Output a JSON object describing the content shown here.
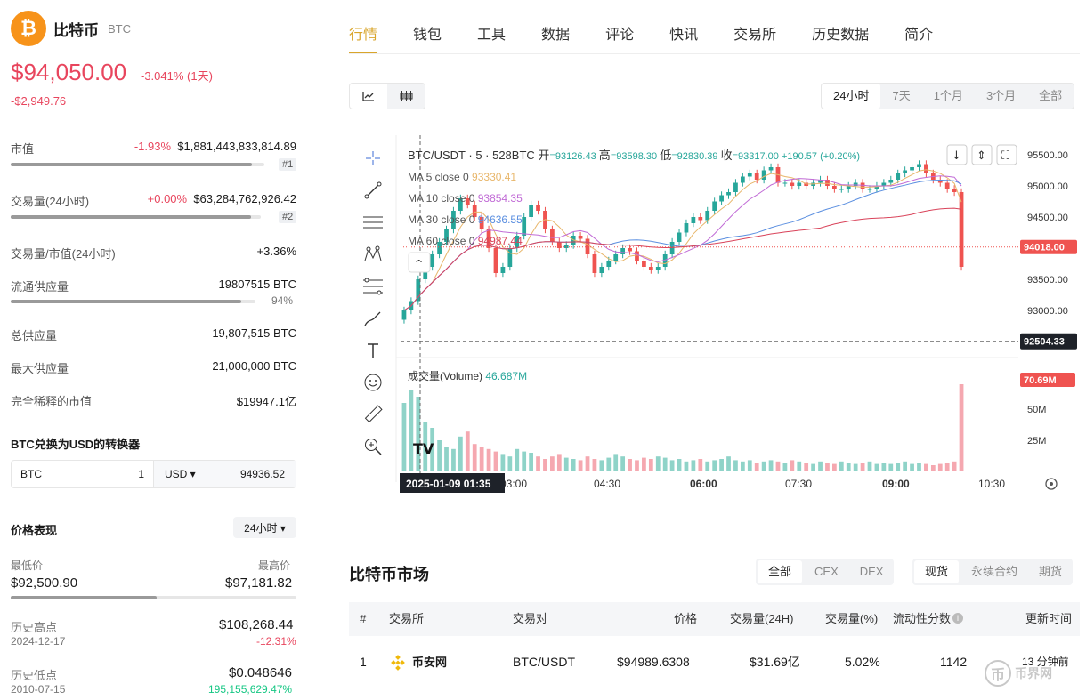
{
  "coin": {
    "name": "比特币",
    "symbol": "BTC",
    "logo_glyph": "₿",
    "price": "$94,050.00",
    "change_pct": "-3.041% (1天)",
    "change_abs": "-$2,949.76"
  },
  "stats": {
    "market_cap": {
      "label": "市值",
      "change": "-1.93%",
      "value": "$1,881,443,833,814.89",
      "rank": "#1",
      "bar_fraction": 0.95
    },
    "volume": {
      "label": "交易量(24小时)",
      "change": "+0.00%",
      "value": "$63,284,762,926.42",
      "rank": "#2",
      "bar_fraction": 0.96
    },
    "vol_mcap": {
      "label": "交易量/市值(24小时)",
      "value": "+3.36%"
    },
    "circulating": {
      "label": "流通供应量",
      "value": "19807515 BTC",
      "pct": "94%",
      "bar_fraction": 0.94
    },
    "total": {
      "label": "总供应量",
      "value": "19,807,515 BTC"
    },
    "max": {
      "label": "最大供应量",
      "value": "21,000,000 BTC"
    },
    "fdv": {
      "label": "完全稀释的市值",
      "value": "$19947.1亿"
    }
  },
  "converter": {
    "title": "BTC兑换为USD的转换器",
    "from": "BTC",
    "amount": "1",
    "to": "USD ▾",
    "result": "94936.52"
  },
  "performance": {
    "title": "价格表现",
    "period": "24小时 ▾",
    "low_label": "最低价",
    "low": "$92,500.90",
    "high_label": "最高价",
    "high": "$97,181.82",
    "range_fraction": 0.51,
    "ath_label": "历史高点",
    "ath_date": "2024-12-17",
    "ath": "$108,268.44",
    "ath_pct": "-12.31%",
    "atl_label": "历史低点",
    "atl_date": "2010-07-15",
    "atl": "$0.048646",
    "atl_pct": "195,155,629.47%"
  },
  "tabs": [
    "行情",
    "钱包",
    "工具",
    "数据",
    "评论",
    "快讯",
    "交易所",
    "历史数据",
    "简介"
  ],
  "chart_toolbar": {
    "line_icon": "line-chart-icon",
    "candle_icon": "candlestick-icon"
  },
  "ranges": [
    "24小时",
    "7天",
    "1个月",
    "3个月",
    "全部"
  ],
  "chart_data": {
    "type": "candlestick",
    "header": {
      "pair": "BTC/USDT · 5 · 528BTC",
      "open_label": "开",
      "open": "93126.43",
      "high_label": "高",
      "high": "93598.30",
      "low_label": "低",
      "low": "92830.39",
      "close_label": "收",
      "close": "93317.00",
      "change": "+190.57 (+0.20%)"
    },
    "ma": [
      {
        "name": "MA 5 close 0",
        "value": "93330.41",
        "color": "#e8b66a"
      },
      {
        "name": "MA 10 close 0",
        "value": "93854.35",
        "color": "#c16bd6"
      },
      {
        "name": "MA 30 close 0",
        "value": "94636.55",
        "color": "#5b8fe0"
      },
      {
        "name": "MA 60 close 0",
        "value": "94987.44",
        "color": "#d9435a"
      }
    ],
    "volume_label": "成交量(Volume)",
    "volume_value": "46.687M",
    "y_ticks": [
      "95500.00",
      "95000.00",
      "94500.00",
      "94000.00",
      "93500.00",
      "93000.00"
    ],
    "y_tick_values": [
      95500,
      95000,
      94500,
      94000,
      93500,
      93000
    ],
    "current_price": "94018.00",
    "current_value": 94018,
    "crosshair_price": "92504.33",
    "crosshair_value": 92504.33,
    "vol_ticks": [
      "75M",
      "50M",
      "25M"
    ],
    "vol_tick_values": [
      75,
      50,
      25
    ],
    "vol_current": "70.69M",
    "x_ticks": [
      "03:00",
      "04:30",
      "06:00",
      "07:30",
      "09:00",
      "10:30"
    ],
    "crosshair_time": "2025-01-09    01:35",
    "close_series": [
      93000,
      93150,
      93500,
      93700,
      93900,
      94100,
      94300,
      94600,
      94800,
      94700,
      94500,
      94300,
      94000,
      93600,
      93700,
      94000,
      94200,
      94500,
      94700,
      94600,
      94300,
      94100,
      94000,
      94050,
      94200,
      94150,
      93900,
      93600,
      93700,
      93800,
      93900,
      94000,
      93950,
      93800,
      93700,
      93650,
      93700,
      93900,
      94100,
      94250,
      94400,
      94500,
      94450,
      94600,
      94750,
      94850,
      94900,
      95050,
      95150,
      95200,
      95100,
      95250,
      95300,
      95050,
      95050,
      95000,
      95050,
      95000,
      95050,
      95100,
      95000,
      94950,
      94950,
      95000,
      95050,
      94950,
      94950,
      95000,
      95050,
      95100,
      95200,
      95250,
      95300,
      95350,
      95200,
      95100,
      95050,
      94950,
      94900,
      93700
    ],
    "volume_series": [
      55,
      65,
      60,
      40,
      35,
      25,
      20,
      18,
      28,
      32,
      22,
      20,
      18,
      16,
      14,
      12,
      18,
      16,
      15,
      12,
      10,
      12,
      14,
      11,
      10,
      9,
      12,
      10,
      9,
      11,
      14,
      12,
      10,
      9,
      11,
      10,
      12,
      11,
      9,
      10,
      8,
      9,
      10,
      8,
      9,
      10,
      12,
      9,
      8,
      9,
      7,
      8,
      9,
      8,
      7,
      9,
      8,
      7,
      6,
      8,
      7,
      6,
      8,
      7,
      6,
      7,
      8,
      6,
      7,
      6,
      7,
      8,
      6,
      7,
      6,
      5,
      6,
      7,
      8,
      70
    ]
  },
  "chart_tools": [
    "crosshair-icon",
    "trendline-icon",
    "parallel-lines-icon",
    "pattern-icon",
    "fib-icon",
    "brush-icon",
    "text-icon",
    "emoji-icon",
    "ruler-icon",
    "zoom-icon"
  ],
  "market": {
    "title": "比特币市场",
    "filter1": [
      "全部",
      "CEX",
      "DEX"
    ],
    "filter2": [
      "现货",
      "永续合约",
      "期货"
    ],
    "headers": [
      "#",
      "交易所",
      "交易对",
      "价格",
      "交易量(24H)",
      "交易量(%)",
      "流动性分数",
      "更新时间"
    ],
    "rows": [
      {
        "rank": "1",
        "exchange": "币安网",
        "pair": "BTC/USDT",
        "price": "$94989.6308",
        "volume": "$31.69亿",
        "vol_pct": "5.02%",
        "liquidity": "1142",
        "updated": "13 分钟前"
      }
    ]
  },
  "watermark": {
    "glyph": "币",
    "text": "币界网"
  }
}
